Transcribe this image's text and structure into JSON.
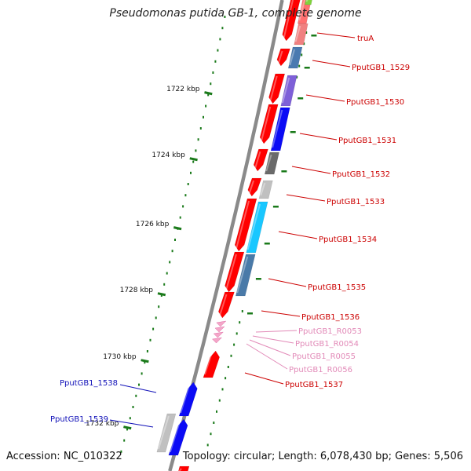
{
  "title": "Pseudomonas putida GB-1, complete genome",
  "footer": {
    "accession": "Accession: NC_010322",
    "summary": "Topology: circular; Length: 6,078,430 bp; Genes: 5,506"
  },
  "colors": {
    "backbone": "#8a8a8a",
    "forward_strand": "#ff0000",
    "tick": "#1a7a1a",
    "label_red": "#cc0000",
    "label_pink": "#e28ab8",
    "label_blue": "#1010b8"
  },
  "ticks": [
    {
      "label": "1722 kbp"
    },
    {
      "label": "1724 kbp"
    },
    {
      "label": "1726 kbp"
    },
    {
      "label": "1728 kbp"
    },
    {
      "label": "1730 kbp"
    },
    {
      "label": "1732 kbp"
    }
  ],
  "gene_labels": [
    {
      "text": "truA",
      "color": "red"
    },
    {
      "text": "PputGB1_1529",
      "color": "red"
    },
    {
      "text": "PputGB1_1530",
      "color": "red"
    },
    {
      "text": "PputGB1_1531",
      "color": "red"
    },
    {
      "text": "PputGB1_1532",
      "color": "red"
    },
    {
      "text": "PputGB1_1533",
      "color": "red"
    },
    {
      "text": "PputGB1_1534",
      "color": "red"
    },
    {
      "text": "PputGB1_1535",
      "color": "red"
    },
    {
      "text": "PputGB1_1536",
      "color": "red"
    },
    {
      "text": "PputGB1_R0053",
      "color": "pink"
    },
    {
      "text": "PputGB1_R0054",
      "color": "pink"
    },
    {
      "text": "PputGB1_R0055",
      "color": "pink"
    },
    {
      "text": "PputGB1_R0056",
      "color": "pink"
    },
    {
      "text": "PputGB1_1537",
      "color": "red"
    },
    {
      "text": "PputGB1_1538",
      "color": "blue"
    },
    {
      "text": "PputGB1_1539",
      "color": "blue"
    }
  ]
}
